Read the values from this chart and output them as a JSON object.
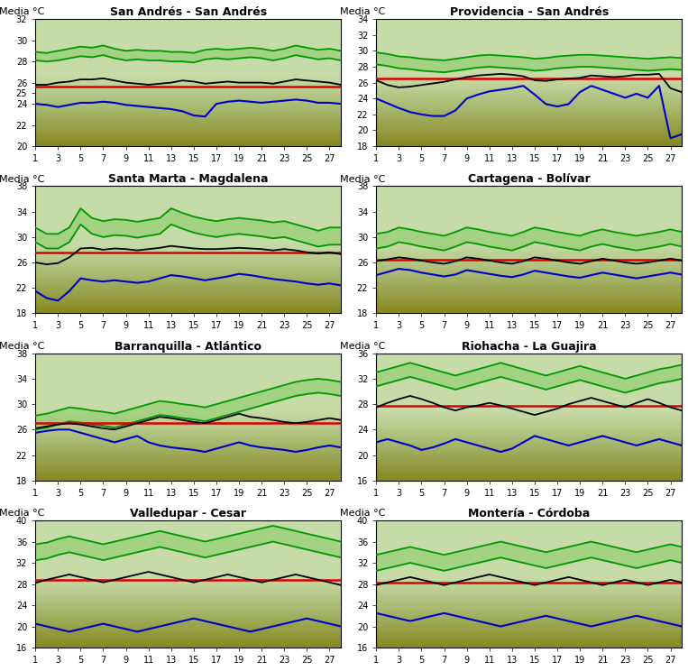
{
  "panels": [
    {
      "title": "San Andrés - San Andrés",
      "ylim": [
        20,
        32
      ],
      "yticks": [
        20,
        22,
        24,
        25,
        26,
        28,
        30,
        32
      ],
      "ytick_labels": [
        "20",
        "22",
        "24",
        "25",
        "26",
        "28",
        "30",
        "32"
      ],
      "red_line": 25.6,
      "green_upper": [
        28.9,
        28.8,
        29.0,
        29.2,
        29.4,
        29.3,
        29.5,
        29.2,
        29.0,
        29.1,
        29.0,
        29.0,
        28.9,
        28.9,
        28.8,
        29.1,
        29.2,
        29.1,
        29.2,
        29.3,
        29.2,
        29.0,
        29.2,
        29.5,
        29.3,
        29.1,
        29.2,
        29.0
      ],
      "green_lower": [
        28.1,
        28.0,
        28.1,
        28.3,
        28.5,
        28.4,
        28.6,
        28.3,
        28.1,
        28.2,
        28.1,
        28.1,
        28.0,
        28.0,
        27.9,
        28.2,
        28.3,
        28.2,
        28.3,
        28.4,
        28.3,
        28.1,
        28.3,
        28.6,
        28.4,
        28.2,
        28.3,
        28.1
      ],
      "black_line": [
        25.8,
        25.8,
        26.0,
        26.1,
        26.3,
        26.3,
        26.4,
        26.2,
        26.0,
        25.9,
        25.8,
        25.9,
        26.0,
        26.2,
        26.1,
        25.9,
        26.0,
        26.1,
        26.0,
        26.0,
        26.0,
        25.9,
        26.1,
        26.3,
        26.2,
        26.1,
        26.0,
        25.8
      ],
      "blue_line": [
        24.0,
        23.9,
        23.7,
        23.9,
        24.1,
        24.1,
        24.2,
        24.1,
        23.9,
        23.8,
        23.7,
        23.6,
        23.5,
        23.3,
        22.9,
        22.8,
        24.0,
        24.2,
        24.3,
        24.2,
        24.1,
        24.2,
        24.3,
        24.4,
        24.3,
        24.1,
        24.1,
        24.0
      ]
    },
    {
      "title": "Providencia - San Andrés",
      "ylim": [
        18,
        34
      ],
      "yticks": [
        18,
        20,
        22,
        24,
        26,
        28,
        30,
        32,
        34
      ],
      "ytick_labels": [
        "18",
        "20",
        "22",
        "24",
        "26",
        "28",
        "30",
        "32",
        "34"
      ],
      "red_line": 26.5,
      "green_upper": [
        29.8,
        29.6,
        29.3,
        29.2,
        29.0,
        28.9,
        28.8,
        29.0,
        29.2,
        29.4,
        29.5,
        29.4,
        29.3,
        29.2,
        29.0,
        29.1,
        29.3,
        29.4,
        29.5,
        29.5,
        29.4,
        29.3,
        29.2,
        29.1,
        29.0,
        29.1,
        29.2,
        29.1
      ],
      "green_lower": [
        28.3,
        28.1,
        27.8,
        27.7,
        27.5,
        27.4,
        27.3,
        27.5,
        27.7,
        27.9,
        28.0,
        27.9,
        27.8,
        27.7,
        27.5,
        27.6,
        27.8,
        27.9,
        28.0,
        28.0,
        27.9,
        27.8,
        27.7,
        27.6,
        27.5,
        27.6,
        27.7,
        27.6
      ],
      "black_line": [
        26.3,
        25.7,
        25.4,
        25.5,
        25.7,
        25.9,
        26.1,
        26.4,
        26.7,
        26.9,
        27.0,
        27.1,
        27.0,
        26.8,
        26.3,
        26.2,
        26.4,
        26.5,
        26.6,
        26.9,
        26.8,
        26.7,
        26.8,
        27.0,
        27.0,
        27.1,
        25.3,
        24.8
      ],
      "blue_line": [
        24.0,
        23.4,
        22.8,
        22.3,
        22.0,
        21.8,
        21.8,
        22.5,
        24.0,
        24.5,
        24.9,
        25.1,
        25.3,
        25.6,
        24.5,
        23.3,
        23.0,
        23.3,
        24.8,
        25.6,
        25.1,
        24.6,
        24.1,
        24.6,
        24.1,
        25.6,
        19.0,
        19.5
      ]
    },
    {
      "title": "Santa Marta - Magdalena",
      "ylim": [
        18,
        38
      ],
      "yticks": [
        18,
        22,
        26,
        30,
        34,
        38
      ],
      "ytick_labels": [
        "18",
        "22",
        "26",
        "30",
        "34",
        "38"
      ],
      "red_line": 27.5,
      "green_upper": [
        31.5,
        30.5,
        30.5,
        31.5,
        34.5,
        33.0,
        32.5,
        32.8,
        32.7,
        32.4,
        32.7,
        33.0,
        34.5,
        33.8,
        33.2,
        32.8,
        32.5,
        32.8,
        33.0,
        32.8,
        32.6,
        32.3,
        32.5,
        32.0,
        31.5,
        31.0,
        31.5,
        31.5
      ],
      "green_lower": [
        29.2,
        28.2,
        28.2,
        29.2,
        32.0,
        30.5,
        30.0,
        30.3,
        30.2,
        29.9,
        30.2,
        30.5,
        32.0,
        31.3,
        30.7,
        30.3,
        30.0,
        30.3,
        30.5,
        30.3,
        30.1,
        29.8,
        30.0,
        29.5,
        29.0,
        28.5,
        28.8,
        28.8
      ],
      "black_line": [
        26.0,
        25.7,
        25.9,
        26.8,
        28.2,
        28.3,
        28.0,
        28.2,
        28.1,
        27.9,
        28.1,
        28.3,
        28.6,
        28.4,
        28.2,
        28.1,
        28.1,
        28.2,
        28.3,
        28.2,
        28.1,
        27.9,
        28.1,
        27.9,
        27.6,
        27.4,
        27.6,
        27.3
      ],
      "blue_line": [
        21.5,
        20.4,
        20.0,
        21.5,
        23.5,
        23.2,
        23.0,
        23.2,
        23.0,
        22.8,
        23.0,
        23.5,
        24.0,
        23.8,
        23.5,
        23.2,
        23.5,
        23.8,
        24.2,
        24.0,
        23.7,
        23.4,
        23.2,
        23.0,
        22.7,
        22.5,
        22.7,
        22.4
      ]
    },
    {
      "title": "Cartagena - Bolívar",
      "ylim": [
        18,
        38
      ],
      "yticks": [
        18,
        22,
        26,
        30,
        34,
        38
      ],
      "ytick_labels": [
        "18",
        "22",
        "26",
        "30",
        "34",
        "38"
      ],
      "red_line": 26.4,
      "green_upper": [
        30.5,
        30.8,
        31.5,
        31.2,
        30.8,
        30.5,
        30.2,
        30.8,
        31.5,
        31.2,
        30.8,
        30.5,
        30.2,
        30.8,
        31.5,
        31.2,
        30.8,
        30.5,
        30.2,
        30.8,
        31.2,
        30.8,
        30.5,
        30.2,
        30.5,
        30.8,
        31.2,
        30.8
      ],
      "green_lower": [
        28.2,
        28.5,
        29.2,
        28.9,
        28.5,
        28.2,
        27.9,
        28.5,
        29.2,
        28.9,
        28.5,
        28.2,
        27.9,
        28.5,
        29.2,
        28.9,
        28.5,
        28.2,
        27.9,
        28.5,
        28.9,
        28.5,
        28.2,
        27.9,
        28.2,
        28.5,
        28.9,
        28.5
      ],
      "black_line": [
        26.2,
        26.5,
        26.8,
        26.6,
        26.3,
        26.0,
        25.8,
        26.2,
        26.8,
        26.6,
        26.3,
        26.0,
        25.8,
        26.2,
        26.8,
        26.6,
        26.3,
        26.0,
        25.8,
        26.2,
        26.6,
        26.3,
        26.0,
        25.8,
        26.0,
        26.3,
        26.6,
        26.3
      ],
      "blue_line": [
        24.0,
        24.5,
        25.0,
        24.8,
        24.4,
        24.1,
        23.8,
        24.1,
        24.8,
        24.5,
        24.2,
        23.9,
        23.7,
        24.1,
        24.7,
        24.4,
        24.1,
        23.8,
        23.6,
        24.0,
        24.4,
        24.1,
        23.8,
        23.5,
        23.8,
        24.1,
        24.4,
        24.1
      ]
    },
    {
      "title": "Barranquilla - Atlántico",
      "ylim": [
        18,
        38
      ],
      "yticks": [
        18,
        22,
        26,
        30,
        34,
        38
      ],
      "ytick_labels": [
        "18",
        "22",
        "26",
        "30",
        "34",
        "38"
      ],
      "red_line": 27.0,
      "green_upper": [
        28.2,
        28.5,
        29.0,
        29.5,
        29.3,
        29.0,
        28.8,
        28.5,
        29.0,
        29.5,
        30.0,
        30.5,
        30.3,
        30.0,
        29.8,
        29.5,
        30.0,
        30.5,
        31.0,
        31.5,
        32.0,
        32.5,
        33.0,
        33.5,
        33.8,
        34.0,
        33.8,
        33.5
      ],
      "green_lower": [
        26.0,
        26.3,
        26.8,
        27.3,
        27.1,
        26.8,
        26.6,
        26.3,
        26.8,
        27.3,
        27.8,
        28.3,
        28.1,
        27.8,
        27.6,
        27.3,
        27.8,
        28.3,
        28.8,
        29.3,
        29.8,
        30.3,
        30.8,
        31.3,
        31.6,
        31.8,
        31.6,
        31.3
      ],
      "black_line": [
        26.2,
        26.5,
        26.8,
        27.0,
        26.8,
        26.5,
        26.2,
        26.0,
        26.5,
        27.0,
        27.5,
        28.0,
        27.8,
        27.5,
        27.2,
        27.0,
        27.5,
        28.0,
        28.5,
        28.0,
        27.8,
        27.5,
        27.2,
        27.0,
        27.2,
        27.5,
        27.8,
        27.5
      ],
      "blue_line": [
        25.5,
        25.8,
        26.0,
        26.0,
        25.5,
        25.0,
        24.5,
        24.0,
        24.5,
        25.0,
        24.0,
        23.5,
        23.2,
        23.0,
        22.8,
        22.5,
        23.0,
        23.5,
        24.0,
        23.5,
        23.2,
        23.0,
        22.8,
        22.5,
        22.8,
        23.2,
        23.5,
        23.2
      ]
    },
    {
      "title": "Riohacha - La Guajira",
      "ylim": [
        16,
        36
      ],
      "yticks": [
        16,
        20,
        24,
        28,
        32,
        36
      ],
      "ytick_labels": [
        "16",
        "20",
        "24",
        "28",
        "32",
        "36"
      ],
      "red_line": 27.8,
      "green_upper": [
        33.0,
        33.5,
        34.0,
        34.5,
        34.0,
        33.5,
        33.0,
        32.5,
        33.0,
        33.5,
        34.0,
        34.5,
        34.0,
        33.5,
        33.0,
        32.5,
        33.0,
        33.5,
        34.0,
        33.5,
        33.0,
        32.5,
        32.0,
        32.5,
        33.0,
        33.5,
        33.8,
        34.2
      ],
      "green_lower": [
        30.8,
        31.3,
        31.8,
        32.3,
        31.8,
        31.3,
        30.8,
        30.3,
        30.8,
        31.3,
        31.8,
        32.3,
        31.8,
        31.3,
        30.8,
        30.3,
        30.8,
        31.3,
        31.8,
        31.3,
        30.8,
        30.3,
        29.8,
        30.3,
        30.8,
        31.3,
        31.6,
        32.0
      ],
      "black_line": [
        27.5,
        28.2,
        28.8,
        29.3,
        28.8,
        28.2,
        27.5,
        27.0,
        27.5,
        27.8,
        28.2,
        27.8,
        27.3,
        26.8,
        26.3,
        26.8,
        27.3,
        28.0,
        28.5,
        29.0,
        28.5,
        28.0,
        27.5,
        28.2,
        28.8,
        28.2,
        27.5,
        27.0
      ],
      "blue_line": [
        22.0,
        22.5,
        22.0,
        21.5,
        20.8,
        21.2,
        21.8,
        22.5,
        22.0,
        21.5,
        21.0,
        20.5,
        21.0,
        22.0,
        23.0,
        22.5,
        22.0,
        21.5,
        22.0,
        22.5,
        23.0,
        22.5,
        22.0,
        21.5,
        22.0,
        22.5,
        22.0,
        21.5
      ]
    },
    {
      "title": "Valledupar - Cesar",
      "ylim": [
        16,
        40
      ],
      "yticks": [
        16,
        20,
        24,
        28,
        32,
        36,
        40
      ],
      "ytick_labels": [
        "16",
        "20",
        "24",
        "28",
        "32",
        "36",
        "40"
      ],
      "red_line": 28.8,
      "green_upper": [
        35.5,
        35.8,
        36.5,
        37.0,
        36.5,
        36.0,
        35.5,
        36.0,
        36.5,
        37.0,
        37.5,
        38.0,
        37.5,
        37.0,
        36.5,
        36.0,
        36.5,
        37.0,
        37.5,
        38.0,
        38.5,
        39.0,
        38.5,
        38.0,
        37.5,
        37.0,
        36.5,
        36.0
      ],
      "green_lower": [
        32.5,
        32.8,
        33.5,
        34.0,
        33.5,
        33.0,
        32.5,
        33.0,
        33.5,
        34.0,
        34.5,
        35.0,
        34.5,
        34.0,
        33.5,
        33.0,
        33.5,
        34.0,
        34.5,
        35.0,
        35.5,
        36.0,
        35.5,
        35.0,
        34.5,
        34.0,
        33.5,
        33.0
      ],
      "black_line": [
        28.2,
        28.8,
        29.3,
        29.8,
        29.3,
        28.8,
        28.3,
        28.8,
        29.3,
        29.8,
        30.3,
        29.8,
        29.3,
        28.8,
        28.3,
        28.8,
        29.3,
        29.8,
        29.3,
        28.8,
        28.3,
        28.8,
        29.3,
        29.8,
        29.3,
        28.8,
        28.3,
        27.8
      ],
      "blue_line": [
        20.5,
        20.0,
        19.5,
        19.0,
        19.5,
        20.0,
        20.5,
        20.0,
        19.5,
        19.0,
        19.5,
        20.0,
        20.5,
        21.0,
        21.5,
        21.0,
        20.5,
        20.0,
        19.5,
        19.0,
        19.5,
        20.0,
        20.5,
        21.0,
        21.5,
        21.0,
        20.5,
        20.0
      ]
    },
    {
      "title": "Montería - Córdoba",
      "ylim": [
        16,
        40
      ],
      "yticks": [
        16,
        20,
        24,
        28,
        32,
        36,
        40
      ],
      "ytick_labels": [
        "16",
        "20",
        "24",
        "28",
        "32",
        "36",
        "40"
      ],
      "red_line": 28.2,
      "green_upper": [
        33.5,
        34.0,
        34.5,
        35.0,
        34.5,
        34.0,
        33.5,
        34.0,
        34.5,
        35.0,
        35.5,
        36.0,
        35.5,
        35.0,
        34.5,
        34.0,
        34.5,
        35.0,
        35.5,
        36.0,
        35.5,
        35.0,
        34.5,
        34.0,
        34.5,
        35.0,
        35.5,
        35.0
      ],
      "green_lower": [
        30.5,
        31.0,
        31.5,
        32.0,
        31.5,
        31.0,
        30.5,
        31.0,
        31.5,
        32.0,
        32.5,
        33.0,
        32.5,
        32.0,
        31.5,
        31.0,
        31.5,
        32.0,
        32.5,
        33.0,
        32.5,
        32.0,
        31.5,
        31.0,
        31.5,
        32.0,
        32.5,
        32.0
      ],
      "black_line": [
        27.8,
        28.3,
        28.8,
        29.3,
        28.8,
        28.3,
        27.8,
        28.3,
        28.8,
        29.3,
        29.8,
        29.3,
        28.8,
        28.3,
        27.8,
        28.3,
        28.8,
        29.3,
        28.8,
        28.3,
        27.8,
        28.3,
        28.8,
        28.3,
        27.8,
        28.3,
        28.8,
        28.3
      ],
      "blue_line": [
        22.5,
        22.0,
        21.5,
        21.0,
        21.5,
        22.0,
        22.5,
        22.0,
        21.5,
        21.0,
        20.5,
        20.0,
        20.5,
        21.0,
        21.5,
        22.0,
        21.5,
        21.0,
        20.5,
        20.0,
        20.5,
        21.0,
        21.5,
        22.0,
        21.5,
        21.0,
        20.5,
        20.0
      ]
    }
  ],
  "green_line_color": "#009900",
  "black_line_color": "#000000",
  "red_line_color": "#dd0000",
  "blue_line_color": "#0000cc",
  "title_fontsize": 9,
  "tick_fontsize": 7,
  "ylabel_fontsize": 8
}
